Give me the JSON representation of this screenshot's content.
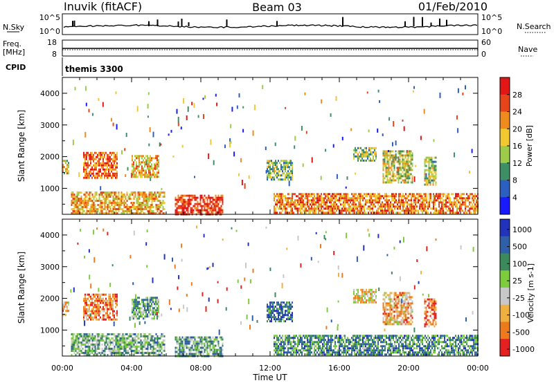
{
  "header": {
    "station": "Inuvik (fitACF)",
    "beam": "Beam 03",
    "date": "01/Feb/2010"
  },
  "summary_panels": {
    "nsky_label": "N.Sky",
    "nsky_ticks": [
      "10^5",
      "10^0"
    ],
    "nsearch_label": "N.Search",
    "nsearch_ticks": [
      "10^5",
      "10^0"
    ],
    "freq_label": "Freq.",
    "freq_unit": "[MHz]",
    "freq_ticks": [
      "18",
      "8"
    ],
    "nave_label": "Nave",
    "nave_ticks": [
      "60",
      "0"
    ],
    "cpid_label": "CPID",
    "cpid_value": "themis 3300"
  },
  "chart_data": [
    {
      "type": "heatmap",
      "panel": "power",
      "ylabel": "Slant Range [km]",
      "ylim": [
        180,
        4500
      ],
      "yticks": [
        "1000",
        "2000",
        "3000",
        "4000"
      ],
      "xlabel": "Time UT",
      "xticks": [
        "00:00",
        "04:00",
        "08:00",
        "12:00",
        "16:00",
        "20:00",
        "00:00"
      ],
      "colorbar": {
        "label": "Power [dB]",
        "ticks": [
          "4",
          "8",
          "12",
          "16",
          "20",
          "24",
          "28"
        ],
        "colors": [
          "#1a1aff",
          "#2b5fc0",
          "#3f8f66",
          "#9ccc4a",
          "#f2c830",
          "#ef8a1e",
          "#e6441a",
          "#e11616"
        ]
      },
      "bands": [
        {
          "t0": 0.5,
          "t1": 5.9,
          "r0": 200,
          "r1": 900,
          "level": 0.62
        },
        {
          "t0": 6.5,
          "t1": 9.3,
          "r0": 200,
          "r1": 800,
          "level": 0.85
        },
        {
          "t0": 12.2,
          "t1": 24.0,
          "r0": 200,
          "r1": 850,
          "level": 0.72
        },
        {
          "t0": 1.2,
          "t1": 3.2,
          "r0": 1300,
          "r1": 2150,
          "level": 0.75
        },
        {
          "t0": 4.0,
          "t1": 5.6,
          "r0": 1350,
          "r1": 2050,
          "level": 0.6
        },
        {
          "t0": 11.8,
          "t1": 13.3,
          "r0": 1300,
          "r1": 1900,
          "level": 0.4
        },
        {
          "t0": 18.5,
          "t1": 20.2,
          "r0": 1200,
          "r1": 2200,
          "level": 0.5
        },
        {
          "t0": 20.9,
          "t1": 21.6,
          "r0": 1100,
          "r1": 2000,
          "level": 0.45
        },
        {
          "t0": 16.8,
          "t1": 18.1,
          "r0": 1900,
          "r1": 2300,
          "level": 0.45
        },
        {
          "t0": 0.0,
          "t1": 0.4,
          "r0": 1500,
          "r1": 1900,
          "level": 0.55
        }
      ]
    },
    {
      "type": "heatmap",
      "panel": "velocity",
      "ylabel": "Slant Range [km]",
      "ylim": [
        180,
        4500
      ],
      "yticks": [
        "1000",
        "2000",
        "3000",
        "4000"
      ],
      "xlabel": "Time UT",
      "xticks": [
        "00:00",
        "04:00",
        "08:00",
        "12:00",
        "16:00",
        "20:00",
        "00:00"
      ],
      "colorbar": {
        "label": "Velocity [m s-1]",
        "ticks": [
          "1000",
          "500",
          "100",
          "25",
          "-25",
          "-100",
          "-500",
          "-1000"
        ],
        "colors": [
          "#2233bb",
          "#2f5fa8",
          "#3c8a5c",
          "#7dcc3c",
          "#c8c8c8",
          "#f0b040",
          "#ee7a1e",
          "#e42020"
        ]
      },
      "bands": [
        {
          "t0": 0.5,
          "t1": 5.9,
          "r0": 200,
          "r1": 900,
          "level": 0.4
        },
        {
          "t0": 6.5,
          "t1": 9.3,
          "r0": 200,
          "r1": 800,
          "level": 0.35
        },
        {
          "t0": 12.2,
          "t1": 24.0,
          "r0": 200,
          "r1": 850,
          "level": 0.3
        },
        {
          "t0": 1.2,
          "t1": 3.2,
          "r0": 1300,
          "r1": 2150,
          "level": 0.78
        },
        {
          "t0": 4.0,
          "t1": 5.6,
          "r0": 1350,
          "r1": 2050,
          "level": 0.38
        },
        {
          "t0": 11.8,
          "t1": 13.3,
          "r0": 1300,
          "r1": 1900,
          "level": 0.2
        },
        {
          "t0": 18.5,
          "t1": 20.2,
          "r0": 1200,
          "r1": 2200,
          "level": 0.7
        },
        {
          "t0": 20.9,
          "t1": 21.6,
          "r0": 1100,
          "r1": 2000,
          "level": 0.82
        },
        {
          "t0": 16.8,
          "t1": 18.1,
          "r0": 1900,
          "r1": 2300,
          "level": 0.6
        },
        {
          "t0": 0.0,
          "t1": 0.4,
          "r0": 1500,
          "r1": 1900,
          "level": 0.7
        }
      ]
    }
  ]
}
